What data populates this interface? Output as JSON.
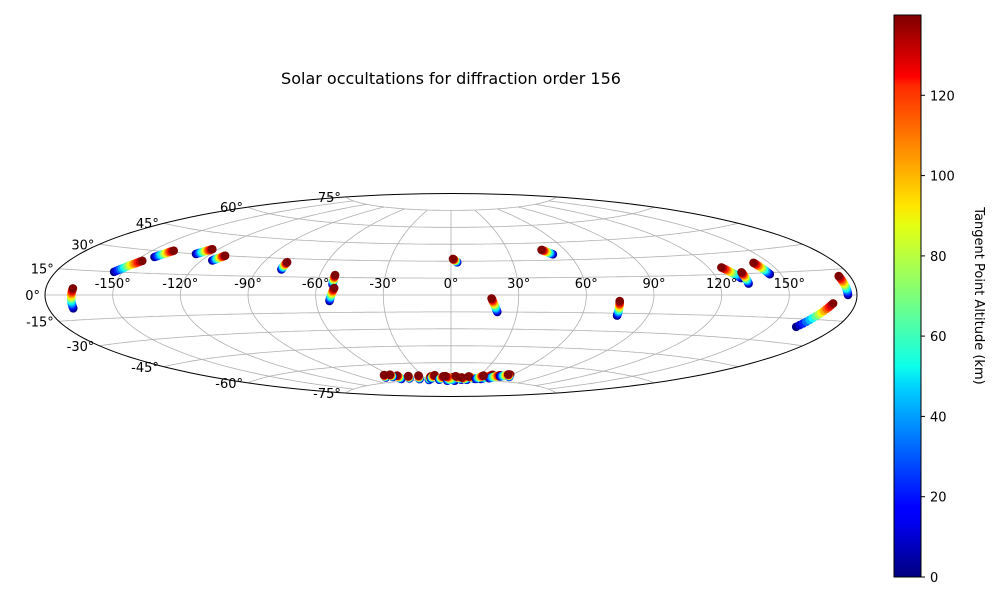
{
  "chart_data": {
    "type": "scatter",
    "projection": "aitoff",
    "title": "Solar occultations for diffraction order 156",
    "grid": true,
    "lon_ticks": [
      -150,
      -120,
      -90,
      -60,
      -30,
      0,
      30,
      60,
      90,
      120,
      150
    ],
    "lon_tick_labels": [
      "-150°",
      "-120°",
      "-90°",
      "-60°",
      "-30°",
      "0°",
      "30°",
      "60°",
      "90°",
      "120°",
      "150°"
    ],
    "lat_ticks": [
      -75,
      -60,
      -45,
      -30,
      -15,
      0,
      15,
      30,
      45,
      60,
      75
    ],
    "lat_tick_labels": [
      "-75°",
      "-60°",
      "-45°",
      "-30°",
      "-15°",
      "0°",
      "15°",
      "30°",
      "45°",
      "60°",
      "75°"
    ],
    "colorbar": {
      "label": "Tangent Point Altitude (km)",
      "range": [
        0,
        140
      ],
      "ticks": [
        0,
        20,
        40,
        60,
        80,
        100,
        120
      ],
      "tick_labels": [
        "0",
        "20",
        "40",
        "60",
        "80",
        "100",
        "120"
      ],
      "colormap": "jet"
    },
    "occultations": [
      {
        "start": [
          -169,
          -8
        ],
        "end": [
          -168,
          4
        ]
      },
      {
        "start": [
          -154,
          15
        ],
        "end": [
          -147,
          23
        ]
      },
      {
        "start": [
          -144,
          26
        ],
        "end": [
          -140,
          31
        ]
      },
      {
        "start": [
          -127,
          30
        ],
        "end": [
          -123,
          34
        ]
      },
      {
        "start": [
          -115,
          26
        ],
        "end": [
          -112,
          30
        ]
      },
      {
        "start": [
          -79,
          21
        ],
        "end": [
          -79,
          27
        ]
      },
      {
        "start": [
          -53,
          9
        ],
        "end": [
          -53,
          17
        ]
      },
      {
        "start": [
          -54,
          -5
        ],
        "end": [
          -52,
          6
        ]
      },
      {
        "start": [
          3,
          29
        ],
        "end": [
          1,
          32
        ]
      },
      {
        "start": [
          52,
          35
        ],
        "end": [
          48,
          39
        ]
      },
      {
        "start": [
          21,
          -15
        ],
        "end": [
          18,
          -3
        ]
      },
      {
        "start": [
          76,
          -17
        ],
        "end": [
          75,
          -5
        ]
      },
      {
        "start": [
          131,
          12
        ],
        "end": [
          126,
          20
        ]
      },
      {
        "start": [
          133,
          8
        ],
        "end": [
          133,
          16
        ]
      },
      {
        "start": [
          145,
          14
        ],
        "end": [
          143,
          22
        ]
      },
      {
        "start": [
          176,
          0
        ],
        "end": [
          175,
          11
        ]
      },
      {
        "start": [
          162,
          -20
        ],
        "end": [
          170,
          -5
        ]
      },
      {
        "start": [
          -58,
          -73
        ],
        "end": [
          -55,
          -70
        ]
      },
      {
        "start": [
          -48,
          -73
        ],
        "end": [
          -45,
          -71
        ]
      },
      {
        "start": [
          -38,
          -74
        ],
        "end": [
          -34,
          -71
        ]
      },
      {
        "start": [
          -28,
          -75
        ],
        "end": [
          -22,
          -72
        ]
      },
      {
        "start": [
          -24,
          -74
        ],
        "end": [
          -17,
          -71
        ]
      },
      {
        "start": [
          -15,
          -75
        ],
        "end": [
          -8,
          -72
        ]
      },
      {
        "start": [
          -5,
          -76
        ],
        "end": [
          2,
          -73
        ]
      },
      {
        "start": [
          5,
          -76
        ],
        "end": [
          -6,
          -72
        ]
      },
      {
        "start": [
          13,
          -75
        ],
        "end": [
          5,
          -72
        ]
      },
      {
        "start": [
          20,
          -75
        ],
        "end": [
          12,
          -73
        ]
      },
      {
        "start": [
          28,
          -74
        ],
        "end": [
          19,
          -72
        ]
      },
      {
        "start": [
          36,
          -74
        ],
        "end": [
          42,
          -70
        ]
      },
      {
        "start": [
          44,
          -73
        ],
        "end": [
          50,
          -70
        ]
      },
      {
        "start": [
          52,
          -71
        ],
        "end": [
          58,
          -69
        ]
      },
      {
        "start": [
          62,
          -71
        ],
        "end": [
          56,
          -69
        ]
      },
      {
        "start": [
          -70,
          -71
        ],
        "end": [
          -66,
          -69
        ]
      },
      {
        "start": [
          -62,
          -71
        ],
        "end": [
          -60,
          -69
        ]
      },
      {
        "start": [
          30,
          -74
        ],
        "end": [
          34,
          -71
        ]
      }
    ]
  }
}
